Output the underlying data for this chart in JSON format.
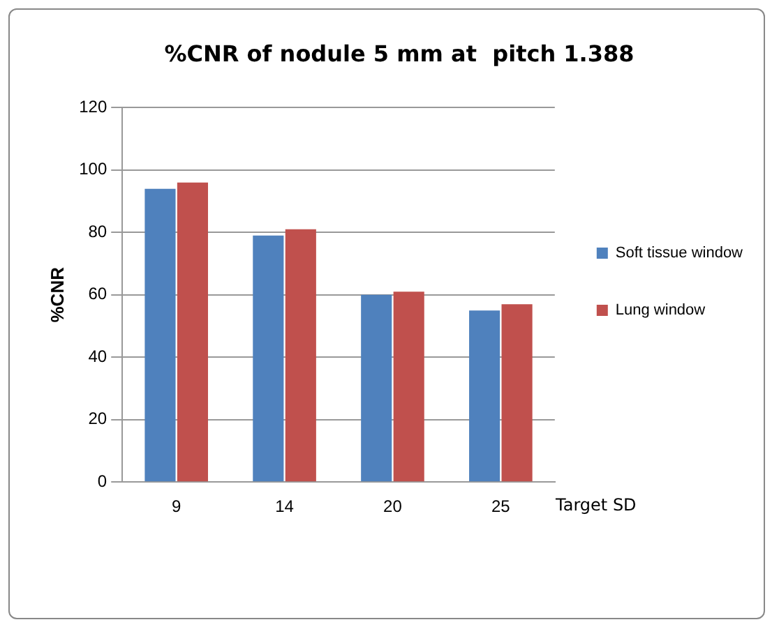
{
  "chart_data": {
    "type": "bar",
    "title": "%CNR of nodule 5 mm at  pitch 1.388",
    "xlabel": "Target SD",
    "ylabel": "%CNR",
    "categories": [
      "9",
      "14",
      "20",
      "25"
    ],
    "series": [
      {
        "name": "Soft tissue window",
        "color": "#4f81bd",
        "values": [
          94,
          79,
          60,
          55
        ]
      },
      {
        "name": "Lung window",
        "color": "#c0504d",
        "values": [
          96,
          81,
          61,
          57
        ]
      }
    ],
    "ylim": [
      0,
      120
    ],
    "yticks": [
      0,
      20,
      40,
      60,
      80,
      100,
      120
    ],
    "grid": "y",
    "legend": "right"
  }
}
